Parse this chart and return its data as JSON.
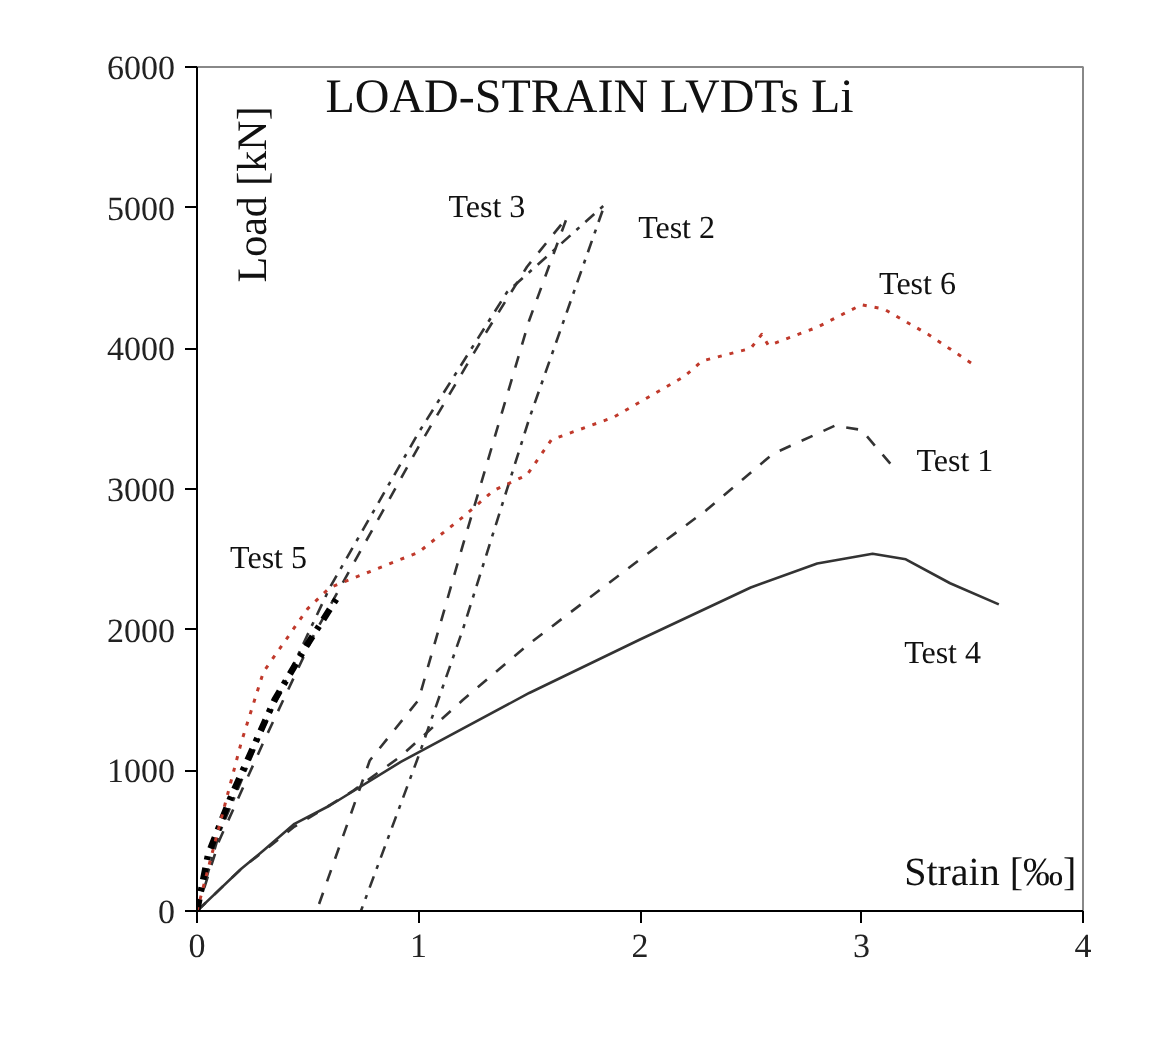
{
  "chart_data": {
    "type": "line",
    "title": "LOAD-STRAIN LVDTs    Li",
    "xlabel": "Strain [‰]",
    "ylabel": "Load [kN]",
    "xlim": [
      0,
      4
    ],
    "ylim": [
      0,
      6000
    ],
    "xticks": [
      0,
      1,
      2,
      3,
      4
    ],
    "yticks": [
      0,
      1000,
      2000,
      3000,
      4000,
      5000,
      6000
    ],
    "grid": false,
    "marker": "none",
    "series": [
      {
        "name": "Test 1",
        "color": "#333333",
        "line_style": "dashed",
        "x": [
          0,
          0.2,
          0.44,
          0.7,
          0.92,
          1.2,
          1.5,
          2.0,
          2.3,
          2.6,
          2.88,
          3.0,
          3.13
        ],
        "values": [
          0,
          300,
          600,
          850,
          1100,
          1500,
          1900,
          2500,
          2850,
          3250,
          3450,
          3420,
          3180
        ]
      },
      {
        "name": "Test 2",
        "color": "#333333",
        "line_style": "dashdot",
        "x": [
          0,
          0.1,
          0.3,
          0.6,
          1.0,
          1.4,
          1.84,
          1.5,
          1.2,
          1.0,
          0.74
        ],
        "values": [
          0,
          550,
          1300,
          2300,
          3400,
          4400,
          5020,
          3500,
          2000,
          1100,
          0
        ]
      },
      {
        "name": "Test 3",
        "color": "#333333",
        "line_style": "dashed",
        "x": [
          0,
          0.1,
          0.3,
          0.53,
          1.0,
          1.3,
          1.49,
          1.67,
          1.5,
          1.2,
          1.0,
          0.78,
          0.54
        ],
        "values": [
          0,
          500,
          1200,
          1970,
          3300,
          4100,
          4580,
          4930,
          4200,
          2600,
          1500,
          1070,
          0
        ]
      },
      {
        "name": "Test 4",
        "color": "#333333",
        "line_style": "solid",
        "x": [
          0,
          0.1,
          0.2,
          0.3,
          0.44,
          0.6,
          0.92,
          1.5,
          2.0,
          2.5,
          2.8,
          3.05,
          3.2,
          3.4,
          3.62
        ],
        "values": [
          0,
          150,
          300,
          430,
          620,
          750,
          1060,
          1550,
          1930,
          2300,
          2470,
          2540,
          2500,
          2330,
          2180
        ]
      },
      {
        "name": "Test 5",
        "color": "#000000",
        "line_style": "dashdot",
        "x": [
          0,
          0.05,
          0.15,
          0.25,
          0.35,
          0.5,
          0.63
        ],
        "values": [
          0,
          400,
          800,
          1150,
          1500,
          1900,
          2220
        ]
      },
      {
        "name": "Test 6",
        "color": "#c0392b",
        "line_style": "dotted",
        "x": [
          0,
          0.1,
          0.2,
          0.3,
          0.5,
          0.6,
          1.0,
          1.2,
          1.34,
          1.49,
          1.6,
          1.88,
          2.2,
          2.28,
          2.5,
          2.55,
          2.58,
          2.8,
          3.0,
          3.1,
          3.3,
          3.51
        ],
        "values": [
          0,
          600,
          1200,
          1700,
          2150,
          2300,
          2550,
          2800,
          2990,
          3100,
          3350,
          3510,
          3800,
          3910,
          4000,
          4100,
          4020,
          4150,
          4310,
          4280,
          4100,
          3880
        ]
      }
    ]
  }
}
